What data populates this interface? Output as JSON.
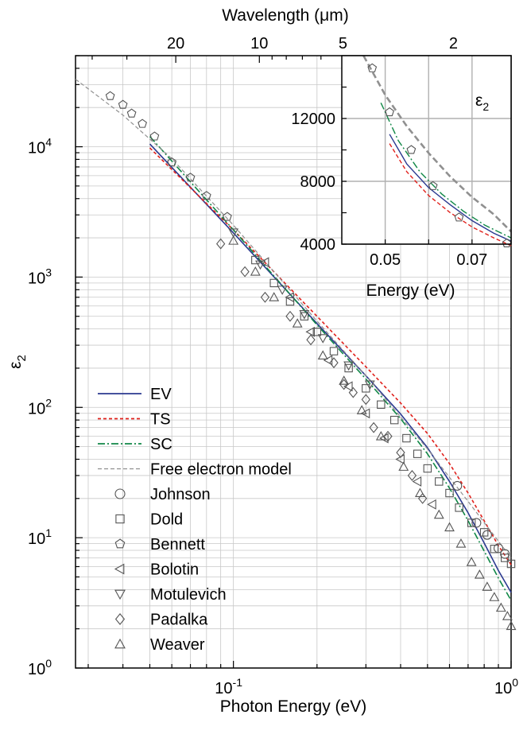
{
  "chart_data": [
    {
      "type": "scatter",
      "xlabel": "Photon Energy (eV)",
      "ylabel": "ε2",
      "top_axis_label": "Wavelength (μm)",
      "xscale": "log",
      "yscale": "log",
      "xlim": [
        0.027,
        1.0
      ],
      "ylim": [
        1,
        50000
      ],
      "grid": true,
      "x_ticks": [
        {
          "v": 0.1,
          "label": "10",
          "sup": "-1"
        },
        {
          "v": 1.0,
          "label": "10",
          "sup": "0"
        }
      ],
      "y_ticks": [
        {
          "v": 1,
          "label": "10",
          "sup": "0"
        },
        {
          "v": 10,
          "label": "10",
          "sup": "1"
        },
        {
          "v": 100,
          "label": "10",
          "sup": "2"
        },
        {
          "v": 1000,
          "label": "10",
          "sup": "3"
        },
        {
          "v": 10000,
          "label": "10",
          "sup": "4"
        }
      ],
      "top_ticks": [
        {
          "v": 0.062,
          "label": "20"
        },
        {
          "v": 0.124,
          "label": "10"
        },
        {
          "v": 0.248,
          "label": "5"
        },
        {
          "v": 0.62,
          "label": "2"
        }
      ],
      "legend_position": "bottom-left",
      "series": [
        {
          "name": "EV",
          "kind": "line",
          "style": "solid",
          "color": "#2b3990",
          "x": [
            0.05,
            0.1,
            0.2,
            0.3,
            0.4,
            0.5,
            0.6,
            0.7,
            0.8,
            0.9,
            1.0
          ],
          "y": [
            10500,
            2180,
            440,
            175,
            89,
            49,
            27,
            15.5,
            9.1,
            5.6,
            3.8
          ]
        },
        {
          "name": "TS",
          "kind": "line",
          "style": "dotted",
          "color": "#e0201b",
          "x": [
            0.05,
            0.1,
            0.2,
            0.3,
            0.4,
            0.5,
            0.6,
            0.7,
            0.8,
            0.9,
            1.0
          ],
          "y": [
            9800,
            2300,
            500,
            205,
            108,
            63,
            37,
            22,
            13.5,
            8.7,
            6.2
          ]
        },
        {
          "name": "SC",
          "kind": "line",
          "style": "dashdot",
          "color": "#118847",
          "x": [
            0.05,
            0.1,
            0.2,
            0.3,
            0.4,
            0.5,
            0.6,
            0.7,
            0.8,
            0.9,
            1.0
          ],
          "y": [
            12000,
            2300,
            430,
            165,
            82,
            44,
            24,
            13.5,
            7.9,
            4.9,
            3.3
          ]
        },
        {
          "name": "Free electron model",
          "kind": "line",
          "style": "dashed",
          "color": "#909090",
          "x": [
            0.027,
            0.04,
            0.06,
            0.1,
            0.2,
            0.3,
            0.5,
            0.7,
            1.0
          ],
          "y": [
            33000,
            17500,
            8100,
            2500,
            460,
            175,
            48,
            19,
            7
          ]
        },
        {
          "name": "Johnson",
          "kind": "marker",
          "marker": "circle",
          "color": "#555555",
          "x": [
            0.64,
            0.75,
            0.82,
            0.9,
            0.95
          ],
          "y": [
            25,
            13,
            10.5,
            8.3,
            7.5
          ]
        },
        {
          "name": "Dold",
          "kind": "marker",
          "marker": "square",
          "color": "#555555",
          "x": [
            0.12,
            0.14,
            0.16,
            0.18,
            0.2,
            0.23,
            0.26,
            0.3,
            0.34,
            0.38,
            0.42,
            0.46,
            0.5,
            0.55,
            0.6,
            0.65,
            0.72,
            0.8,
            0.87,
            0.95,
            1.0
          ],
          "y": [
            1350,
            900,
            650,
            500,
            380,
            270,
            200,
            140,
            105,
            80,
            58,
            44,
            34,
            27,
            22,
            17,
            13,
            11,
            8.2,
            7,
            6.3
          ]
        },
        {
          "name": "Bennett",
          "kind": "marker",
          "marker": "pentagon",
          "color": "#555555",
          "x": [
            0.036,
            0.04,
            0.043,
            0.047,
            0.052,
            0.06,
            0.07,
            0.08,
            0.095
          ],
          "y": [
            24500,
            21000,
            18000,
            15000,
            12000,
            7600,
            5800,
            4200,
            2900
          ]
        },
        {
          "name": "Bolotin",
          "kind": "marker",
          "marker": "tri-left",
          "color": "#555555",
          "x": [
            0.13,
            0.16,
            0.19,
            0.22,
            0.26,
            0.3,
            0.35,
            0.4,
            0.46,
            0.52
          ],
          "y": [
            1300,
            700,
            380,
            230,
            145,
            90,
            58,
            40,
            27,
            18
          ]
        },
        {
          "name": "Motulevich",
          "kind": "marker",
          "marker": "tri-down",
          "color": "#555555",
          "x": [
            0.1,
            0.125,
            0.15,
            0.18,
            0.21,
            0.26,
            0.31
          ],
          "y": [
            2200,
            1250,
            800,
            520,
            340,
            210,
            150
          ]
        },
        {
          "name": "Padalka",
          "kind": "marker",
          "marker": "diamond",
          "color": "#555555",
          "x": [
            0.09,
            0.11,
            0.13,
            0.16,
            0.19,
            0.23,
            0.25,
            0.27,
            0.3,
            0.32,
            0.36,
            0.4,
            0.44,
            0.48
          ],
          "y": [
            1800,
            1100,
            700,
            500,
            330,
            220,
            150,
            130,
            115,
            70,
            60,
            45,
            30,
            20
          ]
        },
        {
          "name": "Weaver",
          "kind": "marker",
          "marker": "tri-up",
          "color": "#555555",
          "x": [
            0.1,
            0.12,
            0.14,
            0.17,
            0.21,
            0.25,
            0.29,
            0.34,
            0.41,
            0.47,
            0.55,
            0.6,
            0.66,
            0.72,
            0.77,
            0.82,
            0.87,
            0.92,
            0.97,
            1.0
          ],
          "y": [
            1900,
            1100,
            700,
            440,
            250,
            160,
            95,
            60,
            35,
            22,
            15,
            12,
            9,
            6.5,
            5.2,
            4.2,
            3.5,
            2.9,
            2.5,
            2.1
          ]
        }
      ]
    },
    {
      "type": "line",
      "title": "ε2",
      "xlabel": "Energy (eV)",
      "ylabel": "",
      "xlim": [
        0.04,
        0.079
      ],
      "ylim": [
        4000,
        16000
      ],
      "grid": true,
      "x_ticks": [
        {
          "v": 0.05,
          "label": "0.05"
        },
        {
          "v": 0.07,
          "label": "0.07"
        }
      ],
      "y_ticks": [
        {
          "v": 4000,
          "label": "4000"
        },
        {
          "v": 8000,
          "label": "8000"
        },
        {
          "v": 12000,
          "label": "12000"
        }
      ],
      "series": [
        {
          "name": "EV",
          "kind": "line",
          "style": "solid",
          "color": "#2b3990",
          "x": [
            0.051,
            0.055,
            0.06,
            0.065,
            0.07,
            0.075,
            0.079
          ],
          "y": [
            11000,
            9100,
            7600,
            6500,
            5500,
            4700,
            4200
          ]
        },
        {
          "name": "TS",
          "kind": "line",
          "style": "dashed",
          "color": "#e0201b",
          "x": [
            0.051,
            0.055,
            0.06,
            0.065,
            0.07,
            0.075,
            0.079
          ],
          "y": [
            10400,
            8600,
            7100,
            6000,
            5100,
            4400,
            3900
          ]
        },
        {
          "name": "SC",
          "kind": "line",
          "style": "dashdot",
          "color": "#118847",
          "x": [
            0.049,
            0.053,
            0.058,
            0.063,
            0.068,
            0.073,
            0.079
          ],
          "y": [
            13000,
            10600,
            8600,
            7200,
            6100,
            5200,
            4400
          ]
        },
        {
          "name": "Free electron model",
          "kind": "line",
          "style": "dashed-thick",
          "color": "#909090",
          "x": [
            0.045,
            0.05,
            0.055,
            0.06,
            0.065,
            0.07,
            0.075,
            0.079
          ],
          "y": [
            16000,
            13500,
            11500,
            9800,
            8300,
            7000,
            5900,
            4800
          ]
        },
        {
          "name": "Bennett",
          "kind": "marker",
          "marker": "pentagon",
          "color": "#555555",
          "x": [
            0.047,
            0.051,
            0.056,
            0.061,
            0.067,
            0.078
          ],
          "y": [
            15200,
            12400,
            10000,
            7700,
            5700,
            4050
          ]
        }
      ]
    }
  ]
}
